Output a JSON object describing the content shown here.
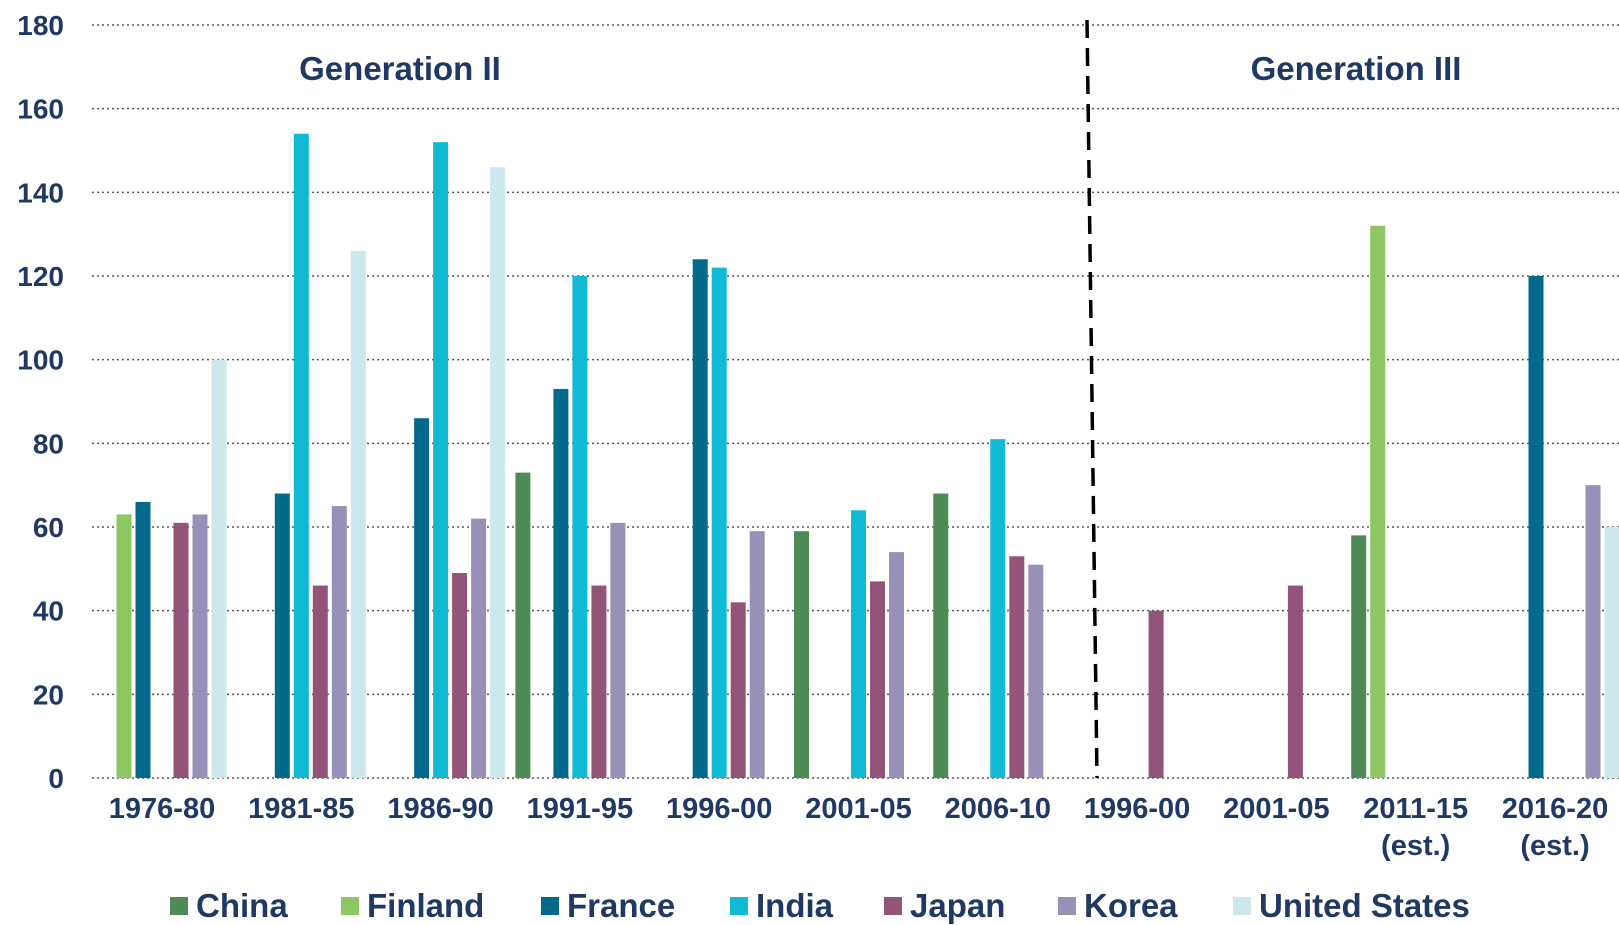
{
  "chart_data": {
    "type": "bar",
    "ylim": [
      0,
      180
    ],
    "yticks": [
      "0",
      "20",
      "40",
      "60",
      "80",
      "100",
      "120",
      "140",
      "160",
      "180"
    ],
    "grid": true,
    "legend_position": "bottom",
    "groups": [
      {
        "label": "Generation II",
        "categories": [
          0,
          1,
          2,
          3,
          4,
          5,
          6
        ]
      },
      {
        "label": "Generation III",
        "categories": [
          7,
          8,
          9,
          10
        ]
      }
    ],
    "categories": [
      [
        "1976-80"
      ],
      [
        "1981-85"
      ],
      [
        "1986-90"
      ],
      [
        "1991-95"
      ],
      [
        "1996-00"
      ],
      [
        "2001-05"
      ],
      [
        "2006-10"
      ],
      [
        "1996-00"
      ],
      [
        "2001-05"
      ],
      [
        "2011-15",
        "(est.)"
      ],
      [
        "2016-20",
        "(est.)"
      ]
    ],
    "series": [
      {
        "name": "China",
        "color": "#4e8b57",
        "values": [
          null,
          null,
          null,
          73,
          null,
          59,
          68,
          null,
          null,
          58,
          null
        ]
      },
      {
        "name": "Finland",
        "color": "#8dc764",
        "values": [
          63,
          null,
          null,
          null,
          null,
          null,
          null,
          null,
          null,
          132,
          null
        ]
      },
      {
        "name": "France",
        "color": "#036a8c",
        "values": [
          66,
          68,
          86,
          93,
          124,
          null,
          null,
          null,
          null,
          null,
          120
        ]
      },
      {
        "name": "India",
        "color": "#10b9d4",
        "values": [
          null,
          154,
          152,
          120,
          122,
          64,
          81,
          null,
          null,
          null,
          null
        ]
      },
      {
        "name": "Japan",
        "color": "#935479",
        "values": [
          61,
          46,
          49,
          46,
          42,
          47,
          53,
          40,
          46,
          null,
          null
        ]
      },
      {
        "name": "Korea",
        "color": "#9890b8",
        "values": [
          63,
          65,
          62,
          61,
          59,
          54,
          51,
          null,
          null,
          null,
          70
        ]
      },
      {
        "name": "United States",
        "color": "#cde8ed",
        "values": [
          100,
          126,
          146,
          null,
          null,
          null,
          null,
          null,
          null,
          null,
          60
        ]
      }
    ]
  }
}
